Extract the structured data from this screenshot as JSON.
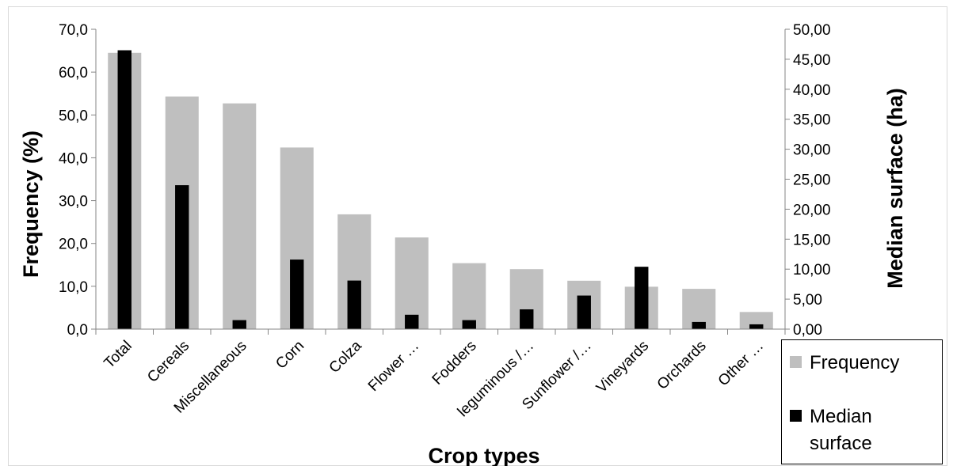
{
  "chart_data": {
    "type": "bar",
    "title": "",
    "xlabel": "Crop types",
    "ylabel": "Frequency (%)",
    "y2label": "Median surface (ha)",
    "categories": [
      "Total",
      "Cereals",
      "Miscellaneous",
      "Corn",
      "Colza",
      "Flower …",
      "Fodders",
      "leguminous /…",
      "Sunflower /…",
      "Vineyards",
      "Orchards",
      "Other …"
    ],
    "series": [
      {
        "name": "Frequency",
        "axis": "left",
        "color": "#bfbfbf",
        "values": [
          64.5,
          54.3,
          52.7,
          42.4,
          26.8,
          21.4,
          15.4,
          14.0,
          11.3,
          9.9,
          9.4,
          4.0
        ]
      },
      {
        "name": "Median surface",
        "axis": "right",
        "color": "#000000",
        "values": [
          46.5,
          24.0,
          1.5,
          11.6,
          8.1,
          2.4,
          1.5,
          3.3,
          5.6,
          10.4,
          1.2,
          0.8
        ]
      }
    ],
    "ylim": [
      0,
      70
    ],
    "y2lim": [
      0,
      50
    ],
    "yticks": [
      "0,0",
      "10,0",
      "20,0",
      "30,0",
      "40,0",
      "50,0",
      "60,0",
      "70,0"
    ],
    "y2ticks": [
      "0,00",
      "5,00",
      "10,00",
      "15,00",
      "20,00",
      "25,00",
      "30,00",
      "35,00",
      "40,00",
      "45,00",
      "50,00"
    ],
    "grid": false,
    "legend_position": "bottom-right"
  },
  "legend": {
    "items": [
      {
        "label": "Frequency",
        "color": "#bfbfbf"
      },
      {
        "label": "Median surface",
        "color": "#000000"
      }
    ]
  }
}
